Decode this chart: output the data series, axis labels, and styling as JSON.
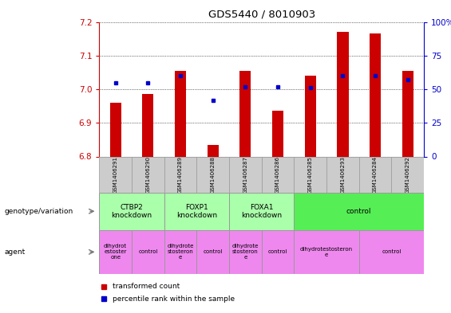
{
  "title": "GDS5440 / 8010903",
  "samples": [
    "GSM1406291",
    "GSM1406290",
    "GSM1406289",
    "GSM1406288",
    "GSM1406287",
    "GSM1406286",
    "GSM1406285",
    "GSM1406293",
    "GSM1406284",
    "GSM1406292"
  ],
  "transformed_count": [
    6.96,
    6.985,
    7.055,
    6.835,
    7.055,
    6.935,
    7.04,
    7.17,
    7.165,
    7.055
  ],
  "percentile_rank": [
    55,
    55,
    60,
    42,
    52,
    52,
    51,
    60,
    60,
    57
  ],
  "ylim_left": [
    6.8,
    7.2
  ],
  "ylim_right": [
    0,
    100
  ],
  "yticks_left": [
    6.8,
    6.9,
    7.0,
    7.1,
    7.2
  ],
  "yticks_right": [
    0,
    25,
    50,
    75,
    100
  ],
  "bar_color": "#cc0000",
  "dot_color": "#0000cc",
  "genotype_groups": [
    {
      "label": "CTBP2\nknockdown",
      "start": 0,
      "end": 2,
      "color": "#aaffaa"
    },
    {
      "label": "FOXP1\nknockdown",
      "start": 2,
      "end": 4,
      "color": "#aaffaa"
    },
    {
      "label": "FOXA1\nknockdown",
      "start": 4,
      "end": 6,
      "color": "#aaffaa"
    },
    {
      "label": "control",
      "start": 6,
      "end": 10,
      "color": "#55ee55"
    }
  ],
  "agent_groups": [
    {
      "label": "dihydrot\nestoster\none",
      "start": 0,
      "end": 1,
      "color": "#ee88ee"
    },
    {
      "label": "control",
      "start": 1,
      "end": 2,
      "color": "#ee88ee"
    },
    {
      "label": "dihydrote\nstosteron\ne",
      "start": 2,
      "end": 3,
      "color": "#ee88ee"
    },
    {
      "label": "control",
      "start": 3,
      "end": 4,
      "color": "#ee88ee"
    },
    {
      "label": "dihydrote\nstosteron\ne",
      "start": 4,
      "end": 5,
      "color": "#ee88ee"
    },
    {
      "label": "control",
      "start": 5,
      "end": 6,
      "color": "#ee88ee"
    },
    {
      "label": "dihydrotestosteron\ne",
      "start": 6,
      "end": 8,
      "color": "#ee88ee"
    },
    {
      "label": "control",
      "start": 8,
      "end": 10,
      "color": "#ee88ee"
    }
  ],
  "legend_items": [
    {
      "label": "transformed count",
      "color": "#cc0000"
    },
    {
      "label": "percentile rank within the sample",
      "color": "#0000cc"
    }
  ],
  "left_label_geno": "genotype/variation",
  "left_label_agent": "agent",
  "bar_width": 0.35
}
